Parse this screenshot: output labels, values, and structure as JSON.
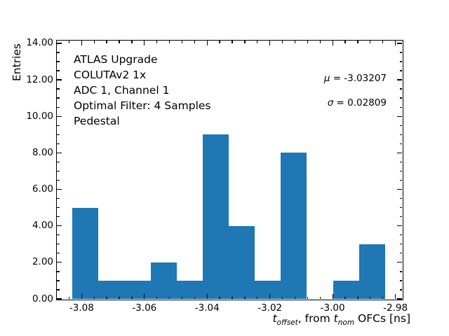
{
  "chart_data": {
    "type": "bar",
    "subtype": "histogram",
    "title": "",
    "ylabel": "Entries",
    "xlabel_parts": {
      "t1": "t",
      "t1_sub": "offset",
      "mid": ", from ",
      "t2": "t",
      "t2_sub": "nom",
      "tail": " OFCs [ns]"
    },
    "bin_edges": [
      -3.0829,
      -3.0746,
      -3.0663,
      -3.058,
      -3.0497,
      -3.0414,
      -3.0331,
      -3.0248,
      -3.0165,
      -3.0082,
      -2.9999,
      -2.9916,
      -2.9833
    ],
    "counts": [
      5,
      1,
      1,
      2,
      1,
      9,
      4,
      1,
      8,
      0,
      1,
      3
    ],
    "total_entries": 36,
    "xlim": [
      -3.0879,
      -2.9779
    ],
    "ylim": [
      0,
      14.15
    ],
    "x_major_ticks": [
      -3.08,
      -3.06,
      -3.04,
      -3.02,
      -3.0,
      -2.98
    ],
    "x_tick_labels": [
      "-3.08",
      "-3.06",
      "-3.04",
      "-3.02",
      "-3.00",
      "-2.98"
    ],
    "x_minor_step": 0.004,
    "y_major_ticks": [
      0,
      2,
      4,
      6,
      8,
      10,
      12,
      14
    ],
    "y_tick_labels": [
      "0.00",
      "2.00",
      "4.00",
      "6.00",
      "8.00",
      "10.00",
      "12.00",
      "14.00"
    ],
    "y_minor_step": 0.5,
    "grid": false,
    "legend": null,
    "bar_color": "#1f77b4",
    "axis_color": "#000000",
    "background_color": "#ffffff",
    "annotation_lines": [
      "ATLAS Upgrade",
      "COLUTAv2 1x",
      "ADC 1, Channel 1",
      "Optimal Filter: 4 Samples",
      "Pedestal"
    ],
    "stats": {
      "mu_symbol": "μ",
      "mu_rest": " = -3.03207",
      "mu": -3.03207,
      "sigma_symbol": "σ",
      "sigma_rest": " = 0.02809",
      "sigma": 0.02809
    }
  }
}
